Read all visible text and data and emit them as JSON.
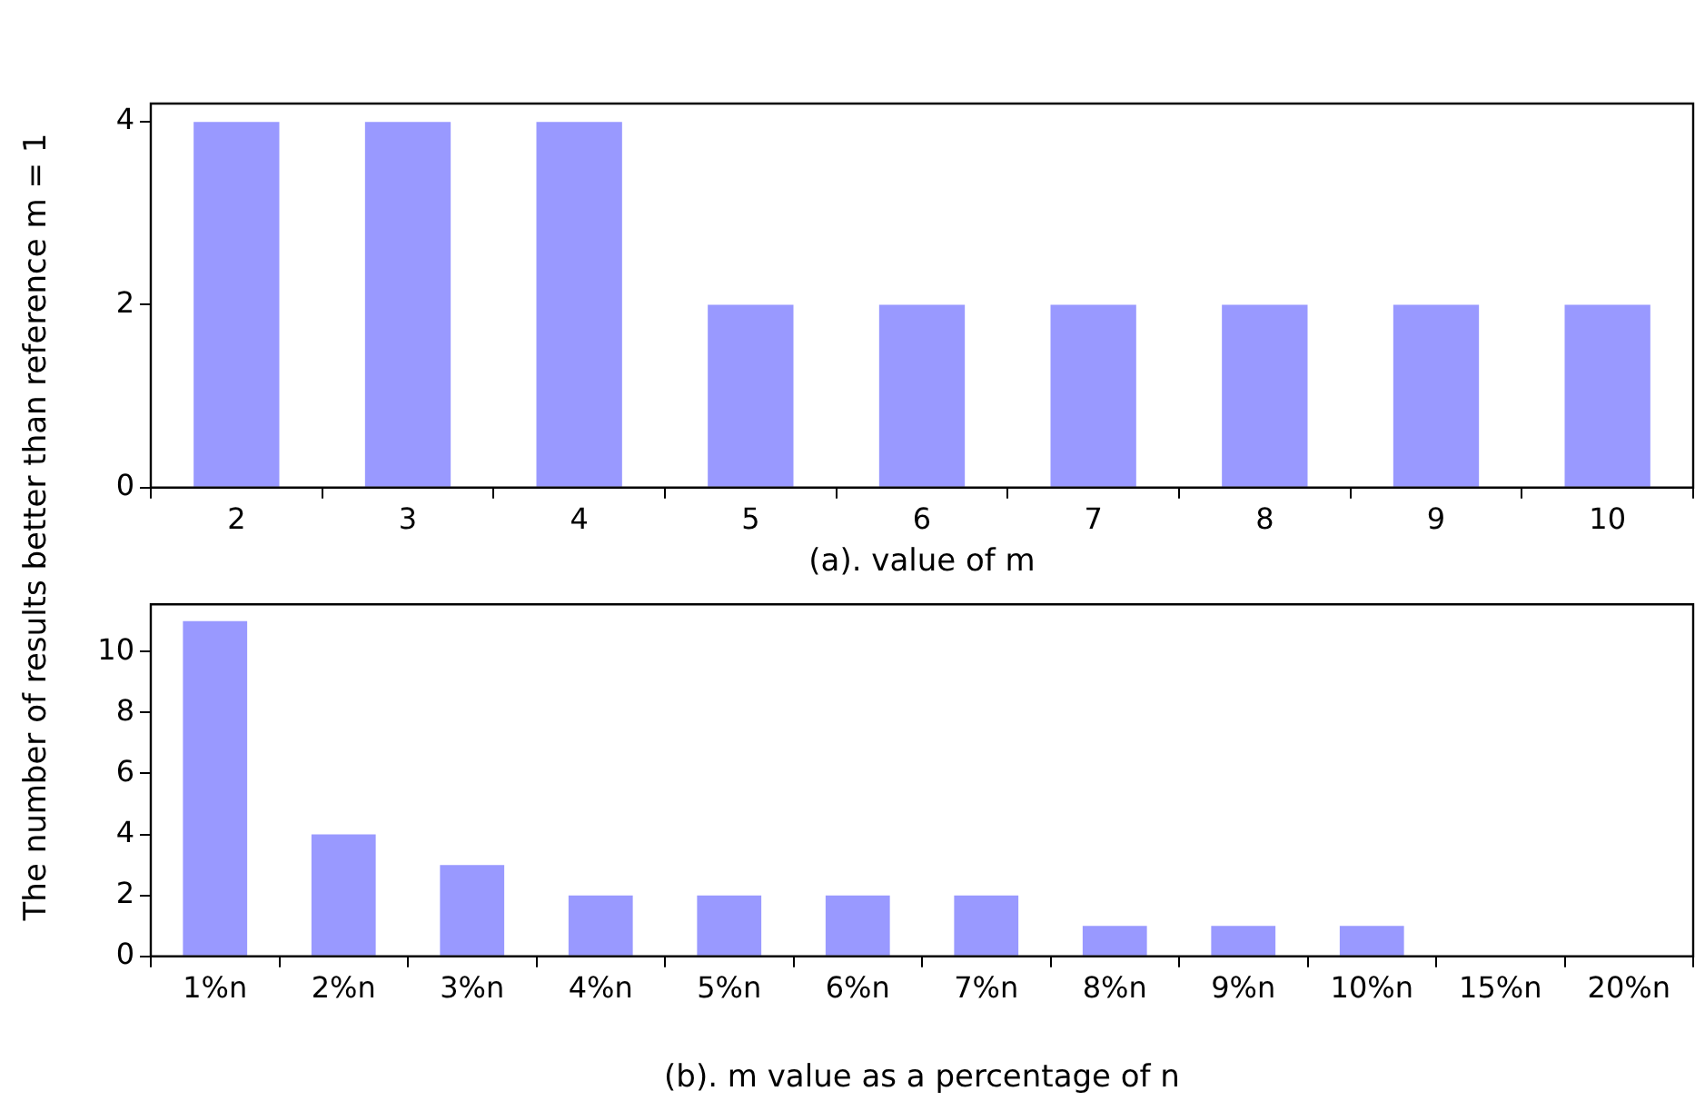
{
  "chart_data": [
    {
      "type": "bar",
      "categories": [
        "2",
        "3",
        "4",
        "5",
        "6",
        "7",
        "8",
        "9",
        "10"
      ],
      "values": [
        4,
        4,
        4,
        2,
        2,
        2,
        2,
        2,
        2
      ],
      "color": "#9999ff",
      "xlabel": "(a). value of m",
      "ylabel": "The number of results better than reference m = 1",
      "ylim": [
        0,
        4.2
      ],
      "yticks": [
        0,
        2,
        4
      ],
      "grid": false,
      "legend": false
    },
    {
      "type": "bar",
      "categories": [
        "1%n",
        "2%n",
        "3%n",
        "4%n",
        "5%n",
        "6%n",
        "7%n",
        "8%n",
        "9%n",
        "10%n",
        "15%n",
        "20%n"
      ],
      "values": [
        11,
        4,
        3,
        2,
        2,
        2,
        2,
        1,
        1,
        1,
        0,
        0
      ],
      "color": "#9999ff",
      "xlabel": "(b). m value as a percentage of n",
      "ylim": [
        0,
        11.55
      ],
      "yticks": [
        0,
        2,
        4,
        6,
        8,
        10
      ],
      "grid": false,
      "legend": false
    }
  ]
}
